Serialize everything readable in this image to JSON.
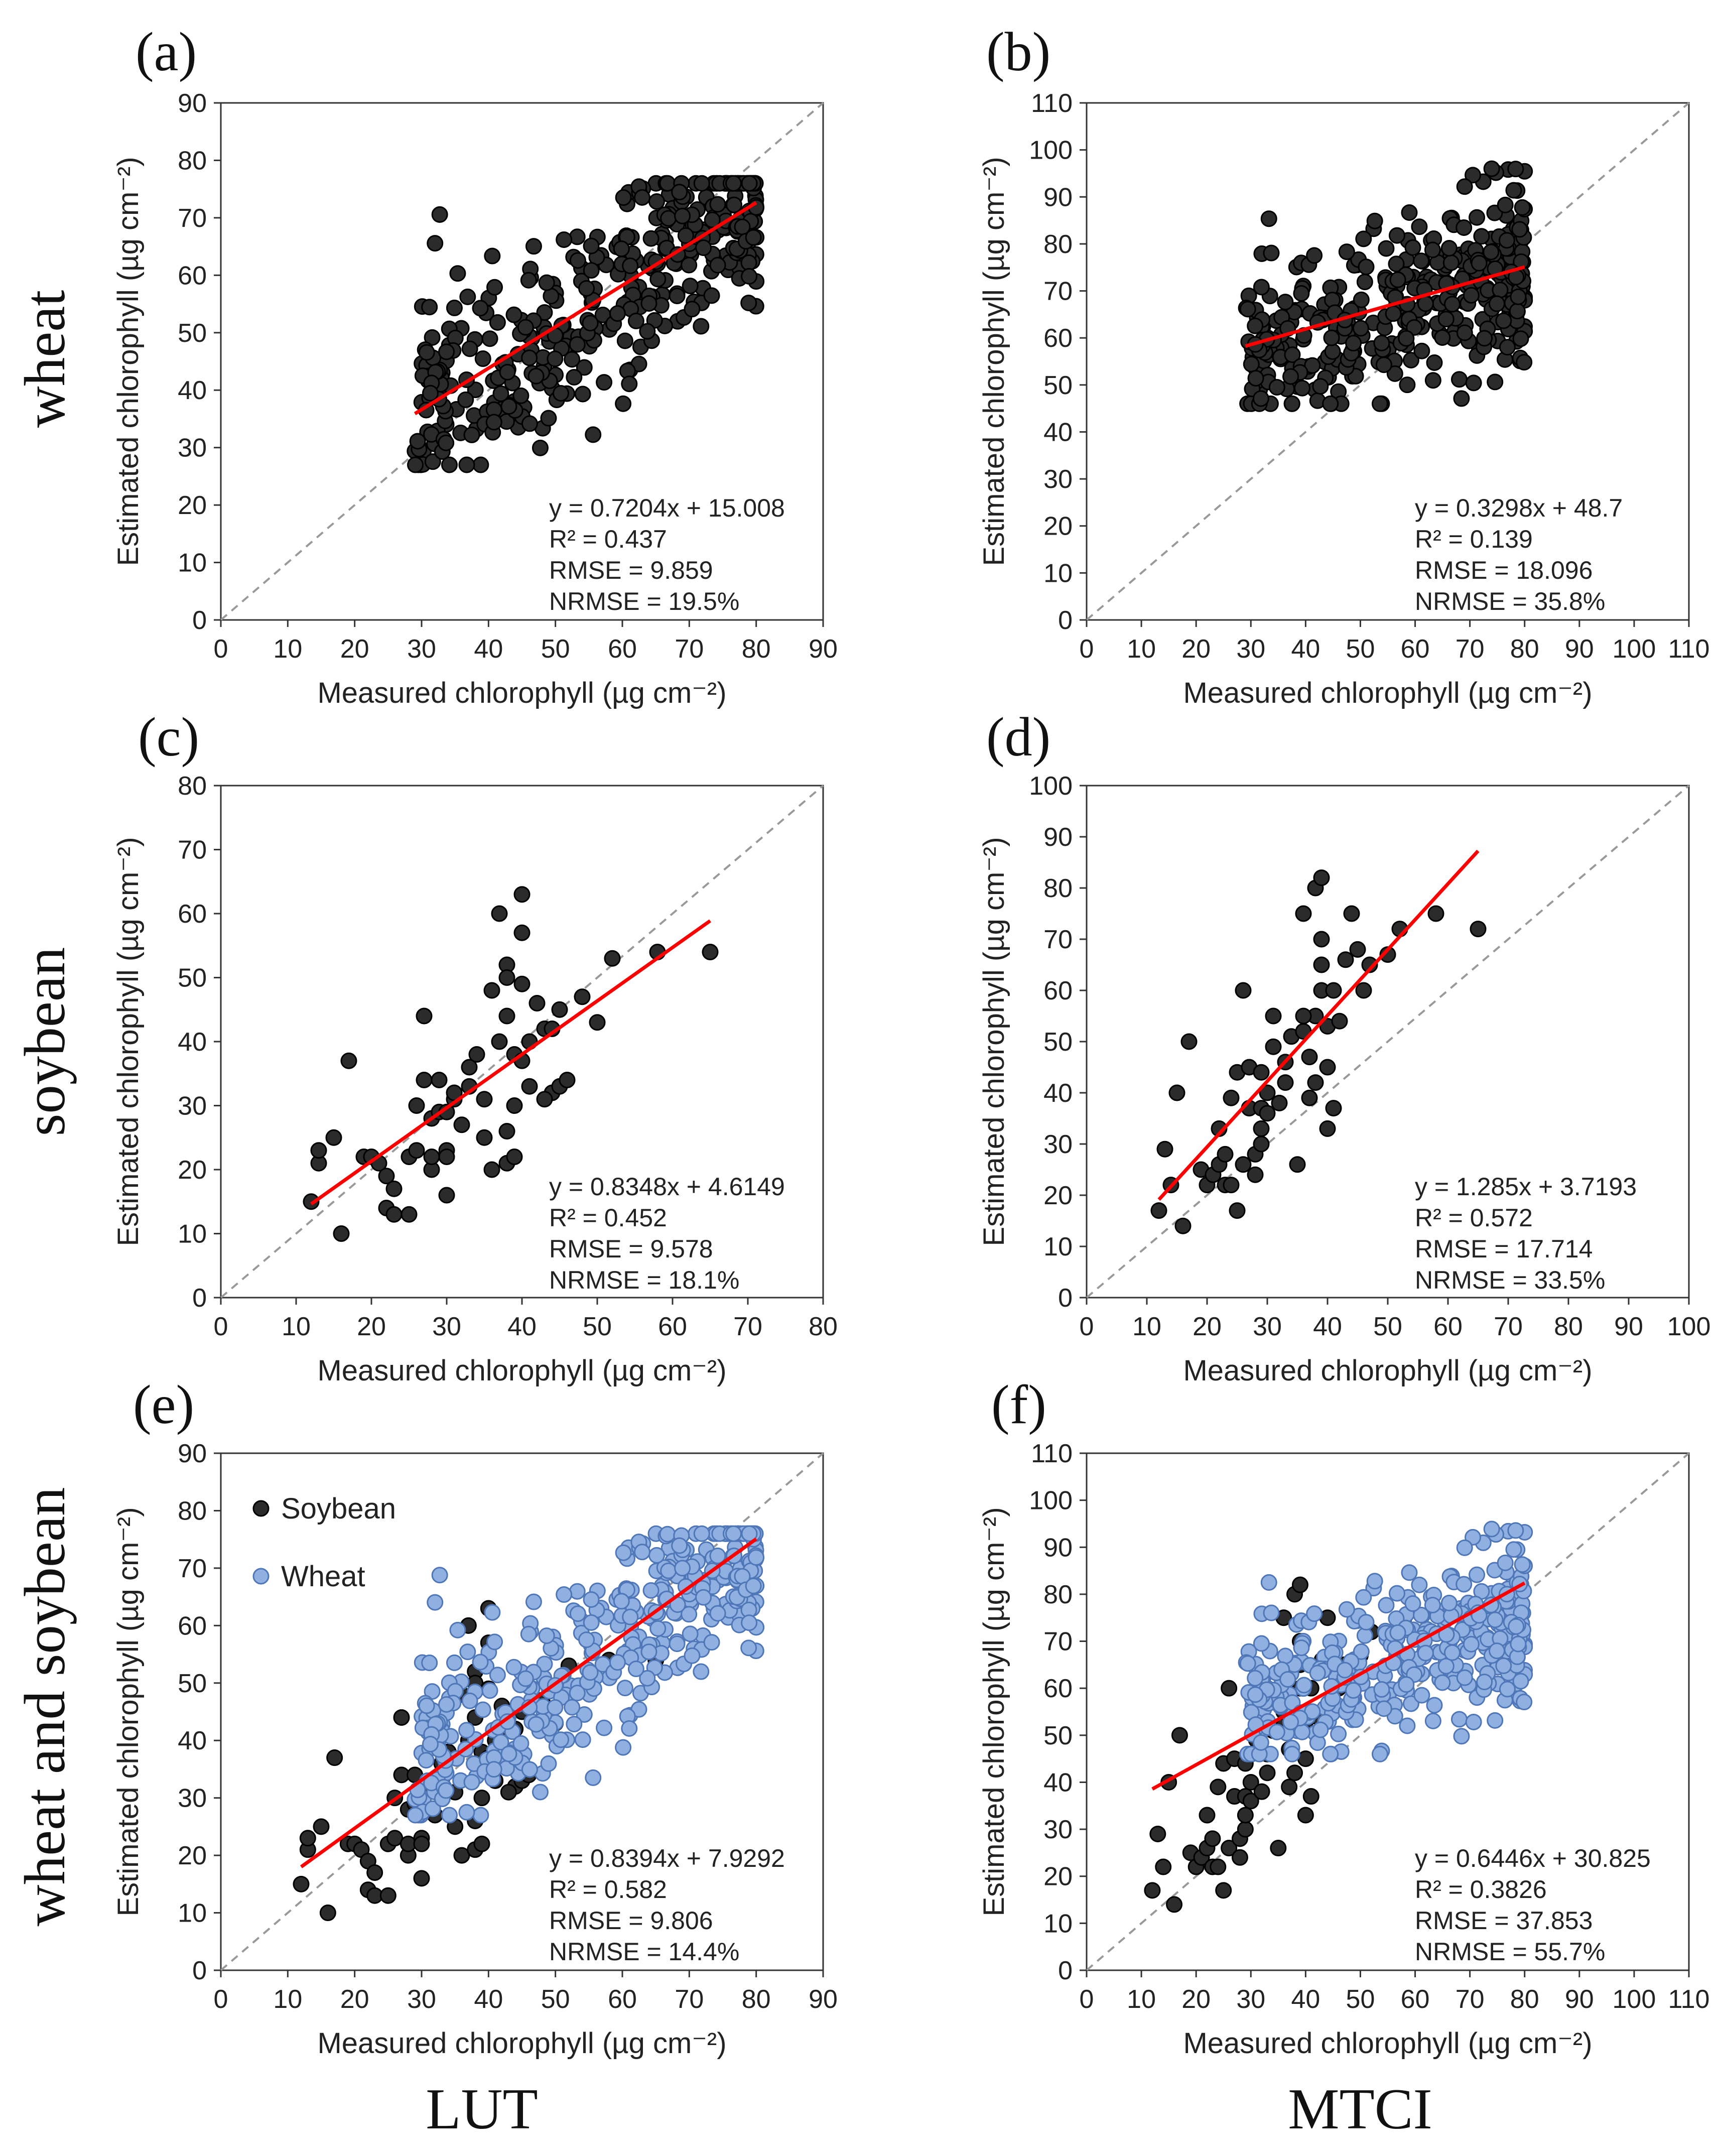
{
  "row_labels": [
    "wheat",
    "soybean",
    "wheat and soybean"
  ],
  "column_labels": [
    "LUT",
    "MTCI"
  ],
  "colors": {
    "soybean_marker": "#2b2b2b",
    "wheat_marker_blue": "#8fb0e0",
    "wheat_marker_blue_edge": "#4f77b8",
    "dark_edge": "#000000",
    "regression_line": "#ff0000",
    "identity_line": "#999999"
  },
  "chart_data": [
    {
      "type": "scatter",
      "panel": "(a)",
      "xlabel": "Measured chlorophyll (µg cm⁻²)",
      "ylabel": "Estimated chlorophyll (µg cm⁻²)",
      "xlim": [
        0,
        90
      ],
      "ylim": [
        0,
        90
      ],
      "xticks": [
        "0",
        "10",
        "20",
        "30",
        "40",
        "50",
        "60",
        "70",
        "80",
        "90"
      ],
      "yticks": [
        "0",
        "10",
        "20",
        "30",
        "40",
        "50",
        "60",
        "70",
        "80",
        "90"
      ],
      "stats": [
        "y = 0.7204x + 15.008",
        "R² = 0.437",
        "RMSE = 9.859",
        "NRMSE = 19.5%"
      ],
      "fit": {
        "slope": 0.7204,
        "intercept": 15.008,
        "x_range": [
          29,
          80
        ]
      },
      "series": [
        {
          "name": "Wheat",
          "style": "dark",
          "n": 400,
          "x_range": [
            29,
            80
          ],
          "seed": 11,
          "y_min": 27,
          "y_max": 76
        }
      ]
    },
    {
      "type": "scatter",
      "panel": "(b)",
      "xlabel": "Measured chlorophyll (µg cm⁻²)",
      "ylabel": "Estimated chlorophyll (µg cm⁻²)",
      "xlim": [
        0,
        110
      ],
      "ylim": [
        0,
        110
      ],
      "xticks": [
        "0",
        "10",
        "20",
        "30",
        "40",
        "50",
        "60",
        "70",
        "80",
        "90",
        "100",
        "110"
      ],
      "yticks": [
        "0",
        "10",
        "20",
        "30",
        "40",
        "50",
        "60",
        "70",
        "80",
        "90",
        "100",
        "110"
      ],
      "stats": [
        "y = 0.3298x + 48.7",
        "R² = 0.139",
        "RMSE = 18.096",
        "NRMSE = 35.8%"
      ],
      "fit": {
        "slope": 0.3298,
        "intercept": 48.7,
        "x_range": [
          29,
          80
        ]
      },
      "series": [
        {
          "name": "Wheat",
          "style": "dark",
          "n": 400,
          "x_range": [
            29,
            80
          ],
          "seed": 23,
          "y_min": 46,
          "y_max": 96
        }
      ]
    },
    {
      "type": "scatter",
      "panel": "(c)",
      "xlabel": "Measured chlorophyll (µg cm⁻²)",
      "ylabel": "Estimated chlorophyll (µg cm⁻²)",
      "xlim": [
        0,
        80
      ],
      "ylim": [
        0,
        80
      ],
      "xticks": [
        "0",
        "10",
        "20",
        "30",
        "40",
        "50",
        "60",
        "70",
        "80"
      ],
      "yticks": [
        "0",
        "10",
        "20",
        "30",
        "40",
        "50",
        "60",
        "70",
        "80"
      ],
      "stats": [
        "y = 0.8348x + 4.6149",
        "R² = 0.452",
        "RMSE = 9.578",
        "NRMSE = 18.1%"
      ],
      "fit": {
        "slope": 0.8348,
        "intercept": 4.6149,
        "x_range": [
          12,
          65
        ]
      },
      "series": [
        {
          "name": "Soybean",
          "style": "dark",
          "points": [
            [
              12,
              15
            ],
            [
              13,
              21
            ],
            [
              13,
              23
            ],
            [
              15,
              25
            ],
            [
              16,
              10
            ],
            [
              17,
              37
            ],
            [
              19,
              22
            ],
            [
              20,
              22
            ],
            [
              21,
              21
            ],
            [
              22,
              14
            ],
            [
              22,
              19
            ],
            [
              23,
              13
            ],
            [
              23,
              17
            ],
            [
              25,
              13
            ],
            [
              25,
              22
            ],
            [
              26,
              23
            ],
            [
              26,
              30
            ],
            [
              27,
              44
            ],
            [
              27,
              34
            ],
            [
              28,
              20
            ],
            [
              28,
              28
            ],
            [
              28,
              22
            ],
            [
              29,
              29
            ],
            [
              30,
              29
            ],
            [
              30,
              16
            ],
            [
              30,
              23
            ],
            [
              30,
              22
            ],
            [
              31,
              31
            ],
            [
              31,
              32
            ],
            [
              32,
              27
            ],
            [
              33,
              33
            ],
            [
              33,
              36
            ],
            [
              34,
              38
            ],
            [
              35,
              25
            ],
            [
              36,
              48
            ],
            [
              36,
              20
            ],
            [
              37,
              40
            ],
            [
              37,
              60
            ],
            [
              38,
              52
            ],
            [
              38,
              50
            ],
            [
              38,
              44
            ],
            [
              38,
              21
            ],
            [
              38,
              26
            ],
            [
              39,
              30
            ],
            [
              39,
              38
            ],
            [
              39,
              22
            ],
            [
              40,
              63
            ],
            [
              40,
              57
            ],
            [
              40,
              37
            ],
            [
              40,
              49
            ],
            [
              41,
              40
            ],
            [
              42,
              46
            ],
            [
              43,
              42
            ],
            [
              44,
              42
            ],
            [
              44,
              32
            ],
            [
              45,
              33
            ],
            [
              45,
              45
            ],
            [
              46,
              34
            ],
            [
              48,
              47
            ],
            [
              50,
              43
            ],
            [
              52,
              53
            ],
            [
              58,
              54
            ],
            [
              65,
              54
            ],
            [
              35,
              31
            ],
            [
              41,
              33
            ],
            [
              43,
              31
            ],
            [
              29,
              34
            ]
          ]
        }
      ]
    },
    {
      "type": "scatter",
      "panel": "(d)",
      "xlabel": "Measured chlorophyll (µg cm⁻²)",
      "ylabel": "Estimated chlorophyll (µg cm⁻²)",
      "xlim": [
        0,
        100
      ],
      "ylim": [
        0,
        100
      ],
      "xticks": [
        "0",
        "10",
        "20",
        "30",
        "40",
        "50",
        "60",
        "70",
        "80",
        "90",
        "100"
      ],
      "yticks": [
        "0",
        "10",
        "20",
        "30",
        "40",
        "50",
        "60",
        "70",
        "80",
        "90",
        "100"
      ],
      "stats": [
        "y = 1.285x + 3.7193",
        "R² = 0.572",
        "RMSE = 17.714",
        "NRMSE = 33.5%"
      ],
      "fit": {
        "slope": 1.285,
        "intercept": 3.7193,
        "x_range": [
          12,
          65
        ]
      },
      "series": [
        {
          "name": "Soybean",
          "style": "dark",
          "points": [
            [
              12,
              17
            ],
            [
              13,
              29
            ],
            [
              14,
              22
            ],
            [
              15,
              40
            ],
            [
              16,
              14
            ],
            [
              17,
              50
            ],
            [
              19,
              25
            ],
            [
              20,
              22
            ],
            [
              21,
              24
            ],
            [
              22,
              26
            ],
            [
              22,
              33
            ],
            [
              23,
              22
            ],
            [
              23,
              28
            ],
            [
              24,
              39
            ],
            [
              25,
              17
            ],
            [
              25,
              44
            ],
            [
              26,
              26
            ],
            [
              26,
              60
            ],
            [
              27,
              37
            ],
            [
              27,
              45
            ],
            [
              28,
              28
            ],
            [
              28,
              24
            ],
            [
              29,
              30
            ],
            [
              29,
              33
            ],
            [
              29,
              37
            ],
            [
              29,
              44
            ],
            [
              30,
              36
            ],
            [
              30,
              40
            ],
            [
              31,
              49
            ],
            [
              31,
              55
            ],
            [
              32,
              38
            ],
            [
              33,
              46
            ],
            [
              34,
              51
            ],
            [
              35,
              26
            ],
            [
              36,
              75
            ],
            [
              36,
              52
            ],
            [
              37,
              47
            ],
            [
              38,
              80
            ],
            [
              38,
              55
            ],
            [
              38,
              42
            ],
            [
              39,
              82
            ],
            [
              39,
              60
            ],
            [
              39,
              70
            ],
            [
              39,
              65
            ],
            [
              40,
              45
            ],
            [
              40,
              53
            ],
            [
              40,
              33
            ],
            [
              41,
              37
            ],
            [
              41,
              60
            ],
            [
              42,
              54
            ],
            [
              43,
              66
            ],
            [
              44,
              75
            ],
            [
              45,
              68
            ],
            [
              46,
              60
            ],
            [
              47,
              65
            ],
            [
              50,
              67
            ],
            [
              52,
              72
            ],
            [
              58,
              75
            ],
            [
              65,
              72
            ],
            [
              33,
              42
            ],
            [
              37,
              39
            ],
            [
              36,
              55
            ],
            [
              24,
              22
            ]
          ]
        }
      ]
    },
    {
      "type": "scatter",
      "panel": "(e)",
      "xlabel": "Measured chlorophyll (µg cm⁻²)",
      "ylabel": "Estimated chlorophyll (µg cm⁻²)",
      "xlim": [
        0,
        90
      ],
      "ylim": [
        0,
        90
      ],
      "xticks": [
        "0",
        "10",
        "20",
        "30",
        "40",
        "50",
        "60",
        "70",
        "80",
        "90"
      ],
      "yticks": [
        "0",
        "10",
        "20",
        "30",
        "40",
        "50",
        "60",
        "70",
        "80",
        "90"
      ],
      "stats": [
        "y = 0.8394x + 7.9292",
        "R² = 0.582",
        "RMSE = 9.806",
        "NRMSE = 14.4%"
      ],
      "legend": [
        "Soybean",
        "Wheat"
      ],
      "fit": {
        "slope": 0.8394,
        "intercept": 7.9292,
        "x_range": [
          12,
          80
        ]
      },
      "series": [
        {
          "name": "Soybean",
          "style": "dark",
          "ref_panel": 2
        },
        {
          "name": "Wheat",
          "style": "blue",
          "n": 400,
          "x_range": [
            29,
            80
          ],
          "seed": 11,
          "y_min": 27,
          "y_max": 76,
          "slope": 0.7204,
          "intercept": 15.008,
          "sd": 8.5
        }
      ]
    },
    {
      "type": "scatter",
      "panel": "(f)",
      "xlabel": "Measured chlorophyll (µg cm⁻²)",
      "ylabel": "Estimated chlorophyll (µg cm⁻²)",
      "xlim": [
        0,
        110
      ],
      "ylim": [
        0,
        110
      ],
      "xticks": [
        "0",
        "10",
        "20",
        "30",
        "40",
        "50",
        "60",
        "70",
        "80",
        "90",
        "100",
        "110"
      ],
      "yticks": [
        "0",
        "10",
        "20",
        "30",
        "40",
        "50",
        "60",
        "70",
        "80",
        "90",
        "100",
        "110"
      ],
      "stats": [
        "y = 0.6446x + 30.825",
        "R² = 0.3826",
        "RMSE = 37.853",
        "NRMSE = 55.7%"
      ],
      "fit": {
        "slope": 0.6446,
        "intercept": 30.825,
        "x_range": [
          12,
          80
        ]
      },
      "series": [
        {
          "name": "Soybean",
          "style": "dark",
          "ref_panel": 3
        },
        {
          "name": "Wheat",
          "style": "blue",
          "n": 400,
          "x_range": [
            29,
            80
          ],
          "seed": 23,
          "y_min": 46,
          "y_max": 96,
          "slope": 0.3298,
          "intercept": 48.7,
          "sd": 8
        }
      ]
    }
  ]
}
